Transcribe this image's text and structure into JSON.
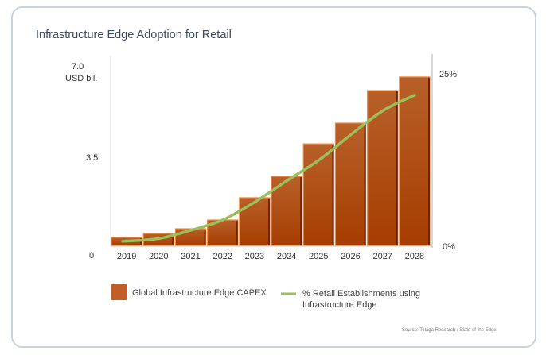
{
  "chart_data": {
    "type": "bar",
    "title": "Infrastructure Edge Adoption for Retail",
    "categories": [
      "2019",
      "2020",
      "2021",
      "2022",
      "2023",
      "2024",
      "2025",
      "2026",
      "2027",
      "2028"
    ],
    "ylabel": "USD bil.",
    "ylim": [
      0,
      7.0
    ],
    "yticks": [
      "0",
      "3.5",
      "7.0"
    ],
    "y2lim": [
      0,
      25
    ],
    "y2ticks": [
      "0%",
      "25%"
    ],
    "series": [
      {
        "name": "Global Infrastructure Edge CAPEX",
        "type": "bar",
        "axis": "left",
        "color": "#b8561c",
        "values": [
          0.31,
          0.46,
          0.65,
          0.99,
          1.86,
          2.69,
          3.96,
          4.77,
          6.04,
          6.57
        ]
      },
      {
        "name": "% Retail Establishments using Infrastructure Edge",
        "type": "line",
        "axis": "right",
        "color": "#9bbf5a",
        "values": [
          0.6,
          1.0,
          2.2,
          3.7,
          6.3,
          9.4,
          12.4,
          16.1,
          19.6,
          21.9
        ]
      }
    ],
    "legend": "bottom",
    "grid": false,
    "source": "Source: Tolaga Research / State of the Edge"
  }
}
